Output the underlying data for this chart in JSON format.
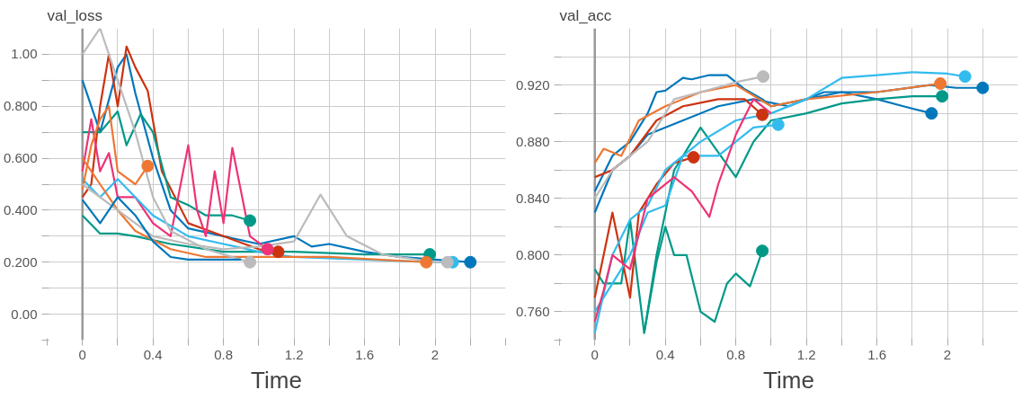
{
  "chart_data": [
    {
      "type": "line",
      "title": "val_loss",
      "xlabel": "Time",
      "xlim": [
        -0.2,
        2.4
      ],
      "ylim": [
        -0.1,
        1.1
      ],
      "xticks": [
        {
          "value": -0.2,
          "label": null
        },
        0,
        {
          "value": 0.2,
          "label": null
        },
        0.4,
        {
          "value": 0.6,
          "label": null
        },
        0.8,
        {
          "value": 1.0,
          "label": null
        },
        1.2,
        {
          "value": 1.4,
          "label": null
        },
        1.6,
        {
          "value": 1.8,
          "label": null
        },
        2,
        {
          "value": 2.2,
          "label": null
        },
        {
          "value": 2.4,
          "label": null
        }
      ],
      "yticks": [
        {
          "value": -0.1,
          "label": null
        },
        {
          "value": 0,
          "label": "0.00"
        },
        {
          "value": 0.1,
          "label": null
        },
        {
          "value": 0.2,
          "label": "0.200"
        },
        {
          "value": 0.3,
          "label": null
        },
        {
          "value": 0.4,
          "label": "0.400"
        },
        {
          "value": 0.5,
          "label": null
        },
        {
          "value": 0.6,
          "label": "0.600"
        },
        {
          "value": 0.7,
          "label": null
        },
        {
          "value": 0.8,
          "label": "0.800"
        },
        {
          "value": 0.9,
          "label": null
        },
        {
          "value": 1.0,
          "label": "1.00"
        }
      ],
      "grid": true,
      "line_style": "solid",
      "ref_lines": [
        {
          "axis": "x",
          "value": 0,
          "color": "#999999"
        }
      ],
      "series": [
        {
          "color": "#0077bb",
          "x": [
            0,
            0.1,
            0.2,
            0.25,
            0.3,
            0.4,
            0.5,
            0.6,
            0.8,
            1.0,
            1.2,
            1.3,
            1.4,
            1.6,
            1.8,
            2.0,
            2.2
          ],
          "values": [
            0.9,
            0.7,
            0.95,
            1.0,
            0.85,
            0.6,
            0.4,
            0.33,
            0.3,
            0.27,
            0.3,
            0.26,
            0.27,
            0.24,
            0.22,
            0.21,
            0.2
          ]
        },
        {
          "color": "#cc3311",
          "x": [
            0,
            0.05,
            0.1,
            0.15,
            0.2,
            0.25,
            0.3,
            0.37,
            0.45,
            0.6,
            0.8,
            1.0,
            1.11
          ],
          "values": [
            0.45,
            0.5,
            0.8,
            1.0,
            0.8,
            1.03,
            0.95,
            0.86,
            0.55,
            0.35,
            0.3,
            0.25,
            0.24
          ]
        },
        {
          "color": "#009988",
          "x": [
            0,
            0.1,
            0.2,
            0.25,
            0.33,
            0.4,
            0.5,
            0.6,
            0.7,
            0.85,
            0.95
          ],
          "values": [
            0.7,
            0.7,
            0.78,
            0.65,
            0.77,
            0.7,
            0.45,
            0.42,
            0.38,
            0.38,
            0.36
          ]
        },
        {
          "color": "#009988",
          "x": [
            0,
            0.1,
            0.2,
            0.3,
            0.5,
            0.8,
            1.2,
            1.6,
            1.97
          ],
          "values": [
            0.38,
            0.31,
            0.31,
            0.3,
            0.27,
            0.24,
            0.24,
            0.23,
            0.23
          ]
        },
        {
          "color": "#ee3377",
          "x": [
            0,
            0.05,
            0.1,
            0.15,
            0.2,
            0.3,
            0.4,
            0.5,
            0.6,
            0.65,
            0.7,
            0.75,
            0.8,
            0.85,
            0.95,
            1.05
          ],
          "values": [
            0.55,
            0.75,
            0.55,
            0.62,
            0.45,
            0.45,
            0.35,
            0.3,
            0.65,
            0.4,
            0.3,
            0.55,
            0.35,
            0.64,
            0.3,
            0.25
          ]
        },
        {
          "color": "#33bbee",
          "x": [
            0,
            0.1,
            0.2,
            0.3,
            0.4,
            0.6,
            0.8,
            1.0,
            1.2,
            1.6,
            2.0,
            2.1
          ],
          "values": [
            0.52,
            0.45,
            0.52,
            0.45,
            0.38,
            0.3,
            0.27,
            0.24,
            0.22,
            0.21,
            0.2,
            0.2
          ]
        },
        {
          "color": "#ee7733",
          "x": [
            0,
            0.05,
            0.1,
            0.15,
            0.2,
            0.3,
            0.37
          ],
          "values": [
            0.48,
            0.65,
            0.75,
            0.8,
            0.55,
            0.5,
            0.57
          ]
        },
        {
          "color": "#ee7733",
          "x": [
            0,
            0.1,
            0.2,
            0.3,
            0.5,
            0.7,
            1.0,
            1.4,
            1.95
          ],
          "values": [
            0.6,
            0.5,
            0.4,
            0.32,
            0.25,
            0.22,
            0.22,
            0.22,
            0.2
          ]
        },
        {
          "color": "#bbbbbb",
          "x": [
            0,
            0.1,
            0.2,
            0.3,
            0.4,
            0.5,
            0.7,
            0.95
          ],
          "values": [
            1.0,
            1.1,
            0.9,
            0.7,
            0.45,
            0.32,
            0.25,
            0.2
          ]
        },
        {
          "color": "#bbbbbb",
          "x": [
            0,
            0.2,
            0.4,
            0.6,
            0.8,
            1.0,
            1.2,
            1.35,
            1.5,
            1.7,
            2.0,
            2.07
          ],
          "values": [
            0.5,
            0.4,
            0.3,
            0.27,
            0.25,
            0.26,
            0.28,
            0.46,
            0.3,
            0.23,
            0.2,
            0.2
          ]
        },
        {
          "color": "#0077bb",
          "x": [
            0,
            0.1,
            0.2,
            0.3,
            0.4,
            0.5,
            0.6,
            0.8,
            0.9
          ],
          "values": [
            0.44,
            0.35,
            0.45,
            0.38,
            0.28,
            0.22,
            0.21,
            0.21,
            0.21
          ]
        },
        {
          "type": "scatter",
          "x": [
            2.2,
            1.11,
            0.95,
            1.97,
            1.05,
            2.1,
            0.37,
            1.95,
            0.95,
            2.07
          ],
          "values": [
            0.2,
            0.24,
            0.36,
            0.23,
            0.25,
            0.2,
            0.57,
            0.2,
            0.2,
            0.2
          ],
          "colors": [
            "#0077bb",
            "#cc3311",
            "#009988",
            "#009988",
            "#ee3377",
            "#33bbee",
            "#ee7733",
            "#ee7733",
            "#bbbbbb",
            "#bbbbbb"
          ]
        }
      ]
    },
    {
      "type": "line",
      "title": "val_acc",
      "xlabel": "Time",
      "xlim": [
        -0.2,
        2.4
      ],
      "ylim": [
        0.74,
        0.96
      ],
      "xticks": [
        {
          "value": -0.2,
          "label": null
        },
        0,
        {
          "value": 0.2,
          "label": null
        },
        0.4,
        {
          "value": 0.6,
          "label": null
        },
        0.8,
        {
          "value": 1.0,
          "label": null
        },
        1.2,
        {
          "value": 1.4,
          "label": null
        },
        1.6,
        {
          "value": 1.8,
          "label": null
        },
        2,
        {
          "value": 2.2,
          "label": null
        }
      ],
      "yticks": [
        {
          "value": 0.74,
          "label": null
        },
        {
          "value": 0.76,
          "label": "0.760"
        },
        {
          "value": 0.78,
          "label": null
        },
        {
          "value": 0.8,
          "label": "0.800"
        },
        {
          "value": 0.82,
          "label": null
        },
        {
          "value": 0.84,
          "label": "0.840"
        },
        {
          "value": 0.86,
          "label": null
        },
        {
          "value": 0.88,
          "label": "0.880"
        },
        {
          "value": 0.9,
          "label": null
        },
        {
          "value": 0.92,
          "label": "0.920"
        },
        {
          "value": 0.94,
          "label": null
        }
      ],
      "grid": true,
      "line_style": "solid",
      "ref_lines": [
        {
          "axis": "x",
          "value": 0,
          "color": "#999999"
        }
      ],
      "series": [
        {
          "color": "#0077bb",
          "x": [
            0,
            0.1,
            0.2,
            0.3,
            0.35,
            0.4,
            0.5,
            0.55,
            0.65,
            0.75,
            0.85,
            0.95,
            1.0,
            1.2,
            1.4,
            1.6,
            1.75,
            1.91
          ],
          "values": [
            0.845,
            0.87,
            0.88,
            0.9,
            0.915,
            0.916,
            0.925,
            0.924,
            0.927,
            0.927,
            0.917,
            0.91,
            0.905,
            0.91,
            0.915,
            0.91,
            0.905,
            0.9
          ]
        },
        {
          "color": "#0077bb",
          "x": [
            0,
            0.1,
            0.2,
            0.3,
            0.5,
            0.7,
            0.9,
            1.1,
            1.3,
            1.6,
            1.9,
            2.05,
            2.2
          ],
          "values": [
            0.83,
            0.86,
            0.87,
            0.885,
            0.895,
            0.905,
            0.91,
            0.905,
            0.915,
            0.915,
            0.92,
            0.918,
            0.918
          ]
        },
        {
          "color": "#009988",
          "x": [
            0,
            0.05,
            0.15,
            0.2,
            0.28,
            0.35,
            0.4,
            0.45,
            0.52,
            0.6,
            0.68,
            0.75,
            0.8,
            0.88,
            0.95
          ],
          "values": [
            0.79,
            0.78,
            0.78,
            0.825,
            0.745,
            0.795,
            0.82,
            0.8,
            0.8,
            0.76,
            0.753,
            0.78,
            0.787,
            0.778,
            0.803
          ]
        },
        {
          "color": "#009988",
          "x": [
            0.28,
            0.35,
            0.45,
            0.6,
            0.8,
            0.9,
            1.0,
            1.2,
            1.4,
            1.6,
            1.8,
            1.97
          ],
          "values": [
            0.745,
            0.8,
            0.86,
            0.89,
            0.855,
            0.88,
            0.895,
            0.9,
            0.907,
            0.91,
            0.912,
            0.912
          ]
        },
        {
          "color": "#cc3311",
          "x": [
            0,
            0.1,
            0.2,
            0.25,
            0.35,
            0.45,
            0.56
          ],
          "values": [
            0.77,
            0.83,
            0.77,
            0.83,
            0.85,
            0.865,
            0.869
          ]
        },
        {
          "color": "#cc3311",
          "x": [
            0,
            0.1,
            0.2,
            0.35,
            0.5,
            0.7,
            0.85,
            0.95
          ],
          "values": [
            0.855,
            0.86,
            0.87,
            0.895,
            0.905,
            0.91,
            0.91,
            0.899
          ]
        },
        {
          "color": "#ee7733",
          "x": [
            0,
            0.05,
            0.15,
            0.25,
            0.4,
            0.6,
            0.8,
            1.0,
            1.2,
            1.6,
            1.96
          ],
          "values": [
            0.865,
            0.875,
            0.87,
            0.895,
            0.905,
            0.915,
            0.92,
            0.905,
            0.91,
            0.915,
            0.921
          ]
        },
        {
          "color": "#bbbbbb",
          "x": [
            0,
            0.1,
            0.2,
            0.3,
            0.45,
            0.6,
            0.8,
            0.955
          ],
          "values": [
            0.84,
            0.86,
            0.87,
            0.88,
            0.91,
            0.915,
            0.922,
            0.926
          ]
        },
        {
          "color": "#33bbee",
          "x": [
            0,
            0.1,
            0.2,
            0.3,
            0.4,
            0.5,
            0.6,
            0.8,
            1.0,
            1.2,
            1.4,
            1.6,
            1.8,
            2.0,
            2.1
          ],
          "values": [
            0.745,
            0.8,
            0.825,
            0.835,
            0.86,
            0.87,
            0.88,
            0.895,
            0.9,
            0.91,
            0.925,
            0.927,
            0.929,
            0.928,
            0.926
          ]
        },
        {
          "color": "#33bbee",
          "x": [
            0,
            0.1,
            0.2,
            0.3,
            0.4,
            0.5,
            0.7,
            0.9,
            1.04
          ],
          "values": [
            0.76,
            0.78,
            0.8,
            0.83,
            0.835,
            0.87,
            0.87,
            0.89,
            0.892
          ]
        },
        {
          "color": "#ee3377",
          "x": [
            0,
            0.05,
            0.1,
            0.2,
            0.3,
            0.45,
            0.55,
            0.65,
            0.7,
            0.8,
            0.9,
            1.0
          ],
          "values": [
            0.753,
            0.775,
            0.8,
            0.79,
            0.84,
            0.855,
            0.845,
            0.827,
            0.85,
            0.885,
            0.91,
            0.9
          ]
        },
        {
          "type": "scatter",
          "x": [
            1.91,
            2.2,
            0.95,
            1.97,
            0.56,
            0.95,
            1.96,
            0.955,
            2.1,
            1.04
          ],
          "values": [
            0.9,
            0.918,
            0.803,
            0.912,
            0.869,
            0.899,
            0.921,
            0.926,
            0.926,
            0.892
          ],
          "colors": [
            "#0077bb",
            "#0077bb",
            "#009988",
            "#009988",
            "#cc3311",
            "#cc3311",
            "#ee7733",
            "#bbbbbb",
            "#33bbee",
            "#33bbee"
          ]
        }
      ]
    }
  ]
}
